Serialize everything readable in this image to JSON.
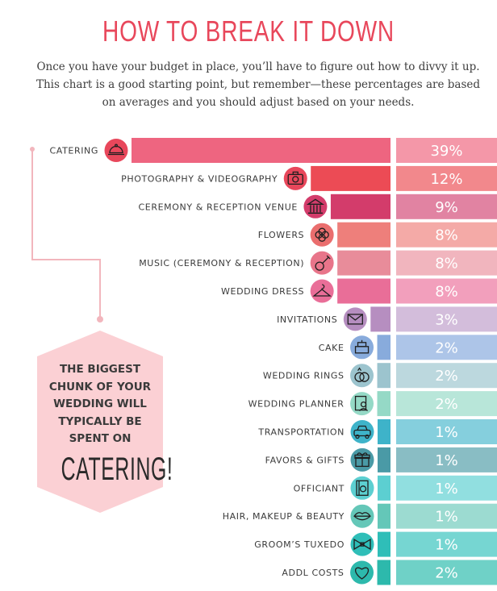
{
  "page": {
    "title": "HOW TO BREAK IT DOWN",
    "intro": "Once you have your budget in place, you’ll have to figure out how to divvy it up. This chart is a good starting point, but remember—these percentages are based on averages and you should adjust based on your needs."
  },
  "callout": {
    "text": "THE BIGGEST CHUNK OF YOUR WEDDING WILL TYPICALLY BE SPENT ON",
    "highlight": "CATERING!"
  },
  "chart_data": {
    "type": "bar",
    "orientation": "horizontal",
    "xlim": [
      0,
      39
    ],
    "categories": [
      {
        "label": "CATERING",
        "value": 39,
        "display": "39%",
        "bar_color": "#ee6580",
        "panel_color": "#f497a8",
        "icon": "catering-cloche-icon",
        "icon_color": "#e8475b"
      },
      {
        "label": "PHOTOGRAPHY & VIDEOGRAPHY",
        "value": 12,
        "display": "12%",
        "bar_color": "#ec4b55",
        "panel_color": "#f2888c",
        "icon": "camera-icon",
        "icon_color": "#e8475b"
      },
      {
        "label": "CEREMONY & RECEPTION VENUE",
        "value": 9,
        "display": "9%",
        "bar_color": "#d33c6b",
        "panel_color": "#e183a2",
        "icon": "venue-building-icon",
        "icon_color": "#d33c6b"
      },
      {
        "label": "FLOWERS",
        "value": 8,
        "display": "8%",
        "bar_color": "#ee7f7b",
        "panel_color": "#f4aaa7",
        "icon": "flower-icon",
        "icon_color": "#ea6e6e"
      },
      {
        "label": "MUSIC (CEREMONY & RECEPTION)",
        "value": 8,
        "display": "8%",
        "bar_color": "#e88c9a",
        "panel_color": "#f1b5be",
        "icon": "guitar-icon",
        "icon_color": "#e8758a"
      },
      {
        "label": "WEDDING DRESS",
        "value": 8,
        "display": "8%",
        "bar_color": "#e96e98",
        "panel_color": "#f29fbc",
        "icon": "hanger-icon",
        "icon_color": "#e96e98"
      },
      {
        "label": "INVITATIONS",
        "value": 3,
        "display": "3%",
        "bar_color": "#b68ec0",
        "panel_color": "#d3bddb",
        "icon": "envelope-icon",
        "icon_color": "#b68ec0"
      },
      {
        "label": "CAKE",
        "value": 2,
        "display": "2%",
        "bar_color": "#88abdc",
        "panel_color": "#adc5e8",
        "icon": "cake-icon",
        "icon_color": "#88abdc"
      },
      {
        "label": "WEDDING RINGS",
        "value": 2,
        "display": "2%",
        "bar_color": "#9cc4ce",
        "panel_color": "#bcd8de",
        "icon": "rings-icon",
        "icon_color": "#9cc4ce"
      },
      {
        "label": "WEDDING PLANNER",
        "value": 2,
        "display": "2%",
        "bar_color": "#95d9c6",
        "panel_color": "#b8e6d9",
        "icon": "planner-icon",
        "icon_color": "#95d9c6"
      },
      {
        "label": "TRANSPORTATION",
        "value": 1,
        "display": "1%",
        "bar_color": "#3eb3c9",
        "panel_color": "#85cfdd",
        "icon": "car-icon",
        "icon_color": "#3eb3c9"
      },
      {
        "label": "FAVORS & GIFTS",
        "value": 1,
        "display": "1%",
        "bar_color": "#4a9aa6",
        "panel_color": "#89bdc4",
        "icon": "gift-icon",
        "icon_color": "#4a9aa6"
      },
      {
        "label": "OFFICIANT",
        "value": 1,
        "display": "1%",
        "bar_color": "#5ccfd1",
        "panel_color": "#91dfe0",
        "icon": "officiant-book-icon",
        "icon_color": "#5ccfd1"
      },
      {
        "label": "HAIR, MAKEUP & BEAUTY",
        "value": 1,
        "display": "1%",
        "bar_color": "#64c7b8",
        "panel_color": "#9cdbd1",
        "icon": "lips-icon",
        "icon_color": "#64c7b8"
      },
      {
        "label": "GROOM’S TUXEDO",
        "value": 1,
        "display": "1%",
        "bar_color": "#2fbeb8",
        "panel_color": "#76d6d2",
        "icon": "bowtie-icon",
        "icon_color": "#2fbeb8"
      },
      {
        "label": "ADDL COSTS",
        "value": 2,
        "display": "2%",
        "bar_color": "#2db9ac",
        "panel_color": "#6fd1c7",
        "icon": "heart-icon",
        "icon_color": "#2db9ac"
      }
    ]
  }
}
